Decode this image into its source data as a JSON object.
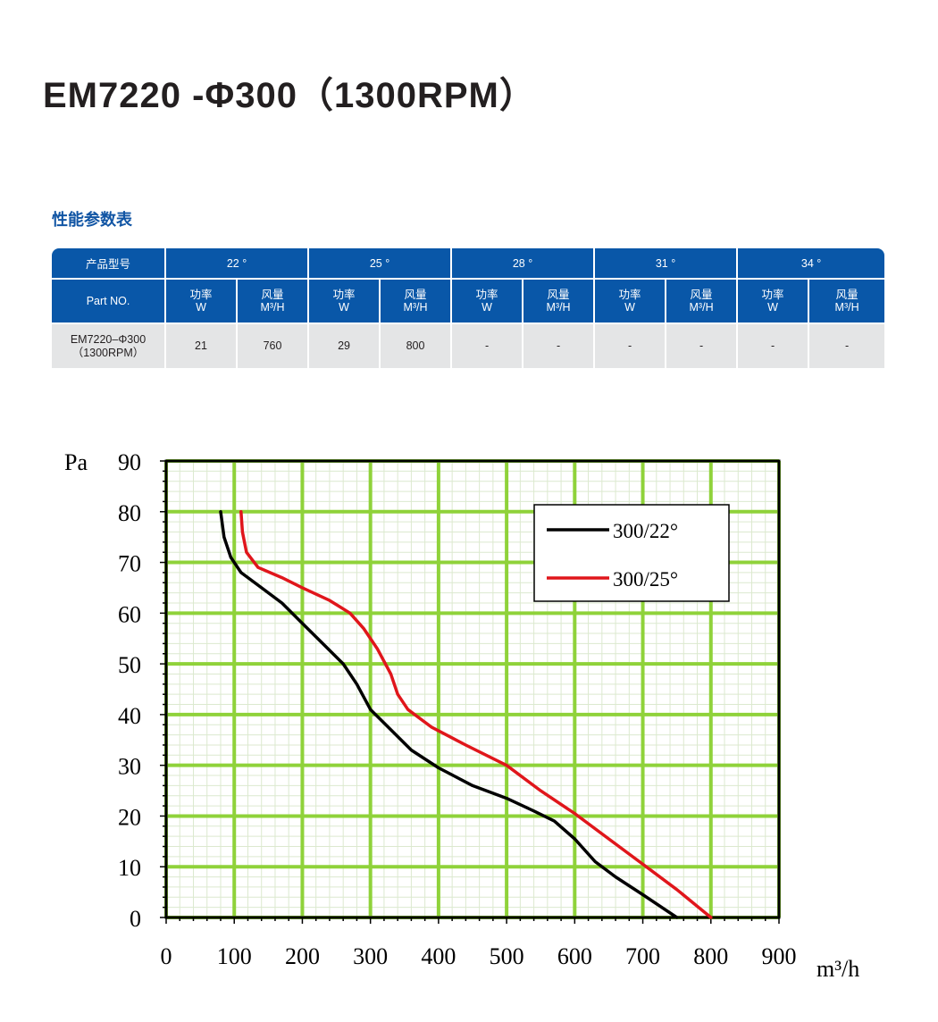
{
  "title": "EM7220 -Φ300（1300RPM）",
  "section_title": "性能参数表",
  "table": {
    "model_header": "产品型号",
    "part_header": "Part NO.",
    "angles": [
      "22 °",
      "25 °",
      "28 °",
      "31 °",
      "34 °"
    ],
    "power_label": "功率",
    "power_unit": "W",
    "airflow_label": "风量",
    "airflow_unit": "M³/H",
    "row": {
      "part_line1": "EM7220–Φ300",
      "part_line2": "（1300RPM）",
      "values": [
        "21",
        "760",
        "29",
        "800",
        "-",
        "-",
        "-",
        "-",
        "-",
        "-"
      ]
    }
  },
  "colors": {
    "table_header": "#0957a8",
    "table_row": "#e4e5e6",
    "grid_major": "#8fd23a",
    "grid_minor": "#dce9cf",
    "series_22": "#000000",
    "series_25": "#e0161b"
  },
  "chart_data": {
    "type": "line",
    "ylabel": "Pa",
    "xlabel": "m³/h",
    "xlim": [
      0,
      900
    ],
    "ylim": [
      0,
      90
    ],
    "xticks": [
      0,
      100,
      200,
      300,
      400,
      500,
      600,
      700,
      800,
      900
    ],
    "yticks": [
      0,
      10,
      20,
      30,
      40,
      50,
      60,
      70,
      80,
      90
    ],
    "grid": true,
    "legend_position": "top-right",
    "series": [
      {
        "name": "300/22°",
        "color": "#000000",
        "points": [
          [
            80,
            80
          ],
          [
            85,
            75
          ],
          [
            95,
            71
          ],
          [
            110,
            68
          ],
          [
            140,
            65
          ],
          [
            170,
            62
          ],
          [
            200,
            58
          ],
          [
            230,
            54
          ],
          [
            260,
            50
          ],
          [
            280,
            46
          ],
          [
            300,
            41
          ],
          [
            330,
            37
          ],
          [
            360,
            33
          ],
          [
            400,
            29.5
          ],
          [
            450,
            26
          ],
          [
            500,
            23.5
          ],
          [
            540,
            21
          ],
          [
            570,
            19
          ],
          [
            600,
            15.5
          ],
          [
            630,
            11
          ],
          [
            660,
            8
          ],
          [
            700,
            4.5
          ],
          [
            750,
            0
          ]
        ]
      },
      {
        "name": "300/25°",
        "color": "#e0161b",
        "points": [
          [
            110,
            80
          ],
          [
            112,
            76
          ],
          [
            118,
            72
          ],
          [
            135,
            69
          ],
          [
            170,
            67
          ],
          [
            200,
            65
          ],
          [
            240,
            62.5
          ],
          [
            270,
            60
          ],
          [
            290,
            57
          ],
          [
            310,
            53
          ],
          [
            330,
            48
          ],
          [
            340,
            44
          ],
          [
            355,
            41
          ],
          [
            390,
            37.5
          ],
          [
            440,
            34
          ],
          [
            500,
            30
          ],
          [
            550,
            25
          ],
          [
            600,
            20.5
          ],
          [
            650,
            15.5
          ],
          [
            700,
            10.5
          ],
          [
            750,
            5.5
          ],
          [
            800,
            0
          ]
        ]
      }
    ]
  }
}
